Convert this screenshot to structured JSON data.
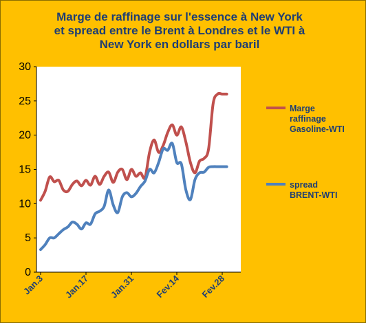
{
  "chart_data": {
    "type": "line",
    "title_lines": [
      "Marge de raffinage sur l'essence à New York",
      "et spread entre le Brent à Londres et le WTI  à",
      "New York en dollars par baril"
    ],
    "ylim": [
      0,
      30
    ],
    "yticks": [
      0,
      5,
      10,
      15,
      20,
      25,
      30
    ],
    "xlim": [
      0,
      40
    ],
    "xticks": [
      {
        "x": 0,
        "label": "Jan.3"
      },
      {
        "x": 10,
        "label": "Jan.17"
      },
      {
        "x": 20,
        "label": "Jan.31"
      },
      {
        "x": 30,
        "label": "Fev.14"
      },
      {
        "x": 40,
        "label": "Fev.28"
      }
    ],
    "grid": false,
    "legend_position": "right",
    "series": [
      {
        "name_lines": [
          "Marge",
          "raffinage",
          "Gasoline-WTI"
        ],
        "color": "#C0504D",
        "x": [
          0,
          1,
          2,
          3,
          4,
          5,
          6,
          7,
          8,
          9,
          10,
          11,
          12,
          13,
          14,
          15,
          16,
          17,
          18,
          19,
          20,
          21,
          22,
          23,
          24,
          25,
          26,
          27,
          28,
          29,
          30,
          31,
          32,
          33,
          34,
          35,
          36,
          37,
          38,
          39,
          40,
          41
        ],
        "values": [
          10.5,
          11.8,
          13.9,
          13.2,
          13.4,
          12.0,
          11.8,
          12.8,
          13.3,
          12.6,
          13.4,
          12.7,
          14.0,
          12.8,
          14.0,
          14.6,
          13.1,
          14.6,
          15.0,
          13.5,
          15.0,
          14.0,
          14.5,
          13.8,
          17.5,
          19.3,
          17.5,
          18.5,
          20.4,
          21.5,
          20.0,
          21.2,
          19.0,
          16.0,
          14.5,
          16.2,
          16.6,
          18.0,
          24.6,
          26.0,
          26.0,
          26.0
        ]
      },
      {
        "name_lines": [
          "spread",
          "BRENT-WTI"
        ],
        "color": "#4F81BD",
        "x": [
          0,
          1,
          2,
          3,
          4,
          5,
          6,
          7,
          8,
          9,
          10,
          11,
          12,
          13,
          14,
          15,
          16,
          17,
          18,
          19,
          20,
          21,
          22,
          23,
          24,
          25,
          26,
          27,
          28,
          29,
          30,
          31,
          32,
          33,
          34,
          35,
          36,
          37,
          38,
          39,
          40,
          41
        ],
        "values": [
          3.3,
          4.0,
          5.0,
          5.0,
          5.6,
          6.2,
          6.6,
          7.3,
          7.0,
          6.3,
          7.2,
          7.0,
          8.5,
          8.9,
          9.6,
          12.0,
          9.8,
          8.7,
          11.0,
          11.6,
          11.0,
          11.5,
          12.5,
          13.3,
          15.0,
          14.5,
          16.0,
          18.0,
          17.8,
          18.8,
          16.0,
          15.8,
          12.0,
          10.6,
          13.5,
          14.5,
          14.6,
          15.3,
          15.4,
          15.4,
          15.4,
          15.4
        ]
      }
    ]
  }
}
